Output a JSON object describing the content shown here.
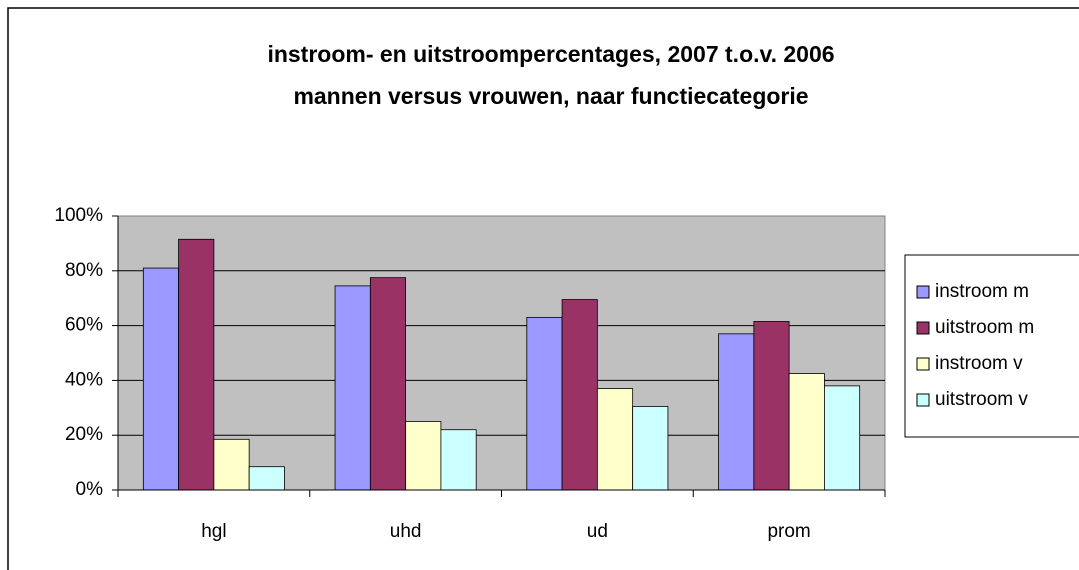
{
  "chart_data": {
    "type": "bar",
    "title": "instroom- en uitstroompercentages, 2007 t.o.v. 2006",
    "subtitle": "mannen versus vrouwen, naar functiecategorie",
    "categories": [
      "hgl",
      "uhd",
      "ud",
      "prom"
    ],
    "series": [
      {
        "name": "instroom m",
        "color": "#9999ff",
        "values": [
          81,
          74.5,
          63,
          57
        ]
      },
      {
        "name": "uitstroom m",
        "color": "#993366",
        "values": [
          91.5,
          77.5,
          69.5,
          61.5
        ]
      },
      {
        "name": "instroom v",
        "color": "#ffffcc",
        "values": [
          18.5,
          25,
          37,
          42.5
        ]
      },
      {
        "name": "uitstroom v",
        "color": "#ccffff",
        "values": [
          8.5,
          22,
          30.5,
          38
        ]
      }
    ],
    "ylim": [
      0,
      100
    ],
    "yticks": [
      {
        "value": 0,
        "label": "0%"
      },
      {
        "value": 20,
        "label": "20%"
      },
      {
        "value": 40,
        "label": "40%"
      },
      {
        "value": 60,
        "label": "60%"
      },
      {
        "value": 80,
        "label": "80%"
      },
      {
        "value": 100,
        "label": "100%"
      }
    ],
    "grid": true,
    "legend": "right"
  }
}
